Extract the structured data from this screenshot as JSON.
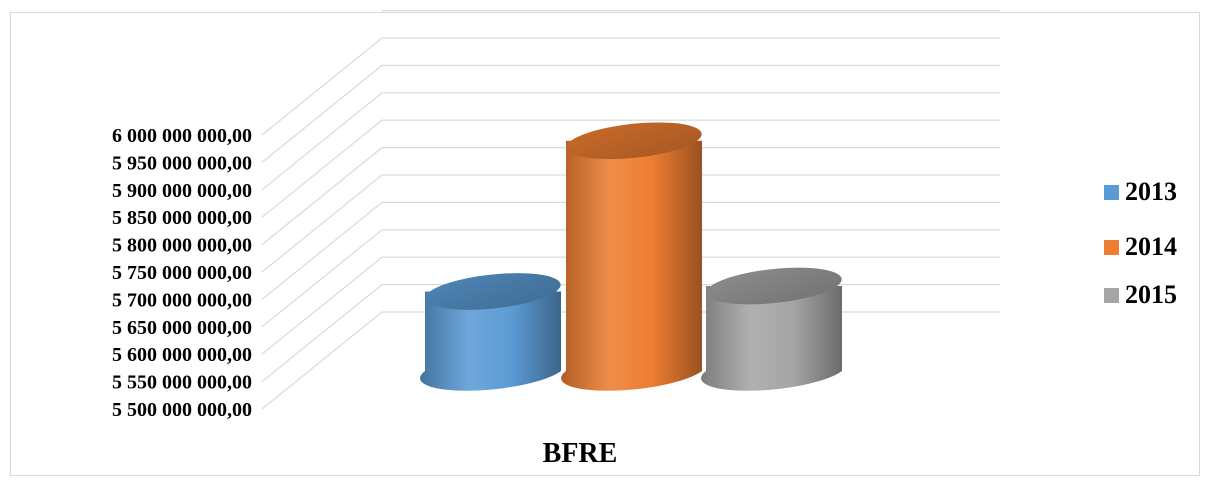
{
  "chart_data": {
    "type": "bar",
    "variant": "3d-cylinder",
    "categories": [
      "BFRE"
    ],
    "series": [
      {
        "name": "2013",
        "values": [
          5740000000
        ],
        "color": "#5b9bd5"
      },
      {
        "name": "2014",
        "values": [
          6015000000
        ],
        "color": "#ed7d31"
      },
      {
        "name": "2015",
        "values": [
          5750000000
        ],
        "color": "#a5a5a5"
      }
    ],
    "y_ticks": [
      "5 500 000 000,00",
      "5 550 000 000,00",
      "5 600 000 000,00",
      "5 650 000 000,00",
      "5 700 000 000,00",
      "5 750 000 000,00",
      "5 800 000 000,00",
      "5 850 000 000,00",
      "5 900 000 000,00",
      "5 950 000 000,00",
      "6 000 000 000,00"
    ],
    "ylim": [
      5500000000,
      6000000000
    ],
    "grid": true,
    "legend_position": "right"
  }
}
